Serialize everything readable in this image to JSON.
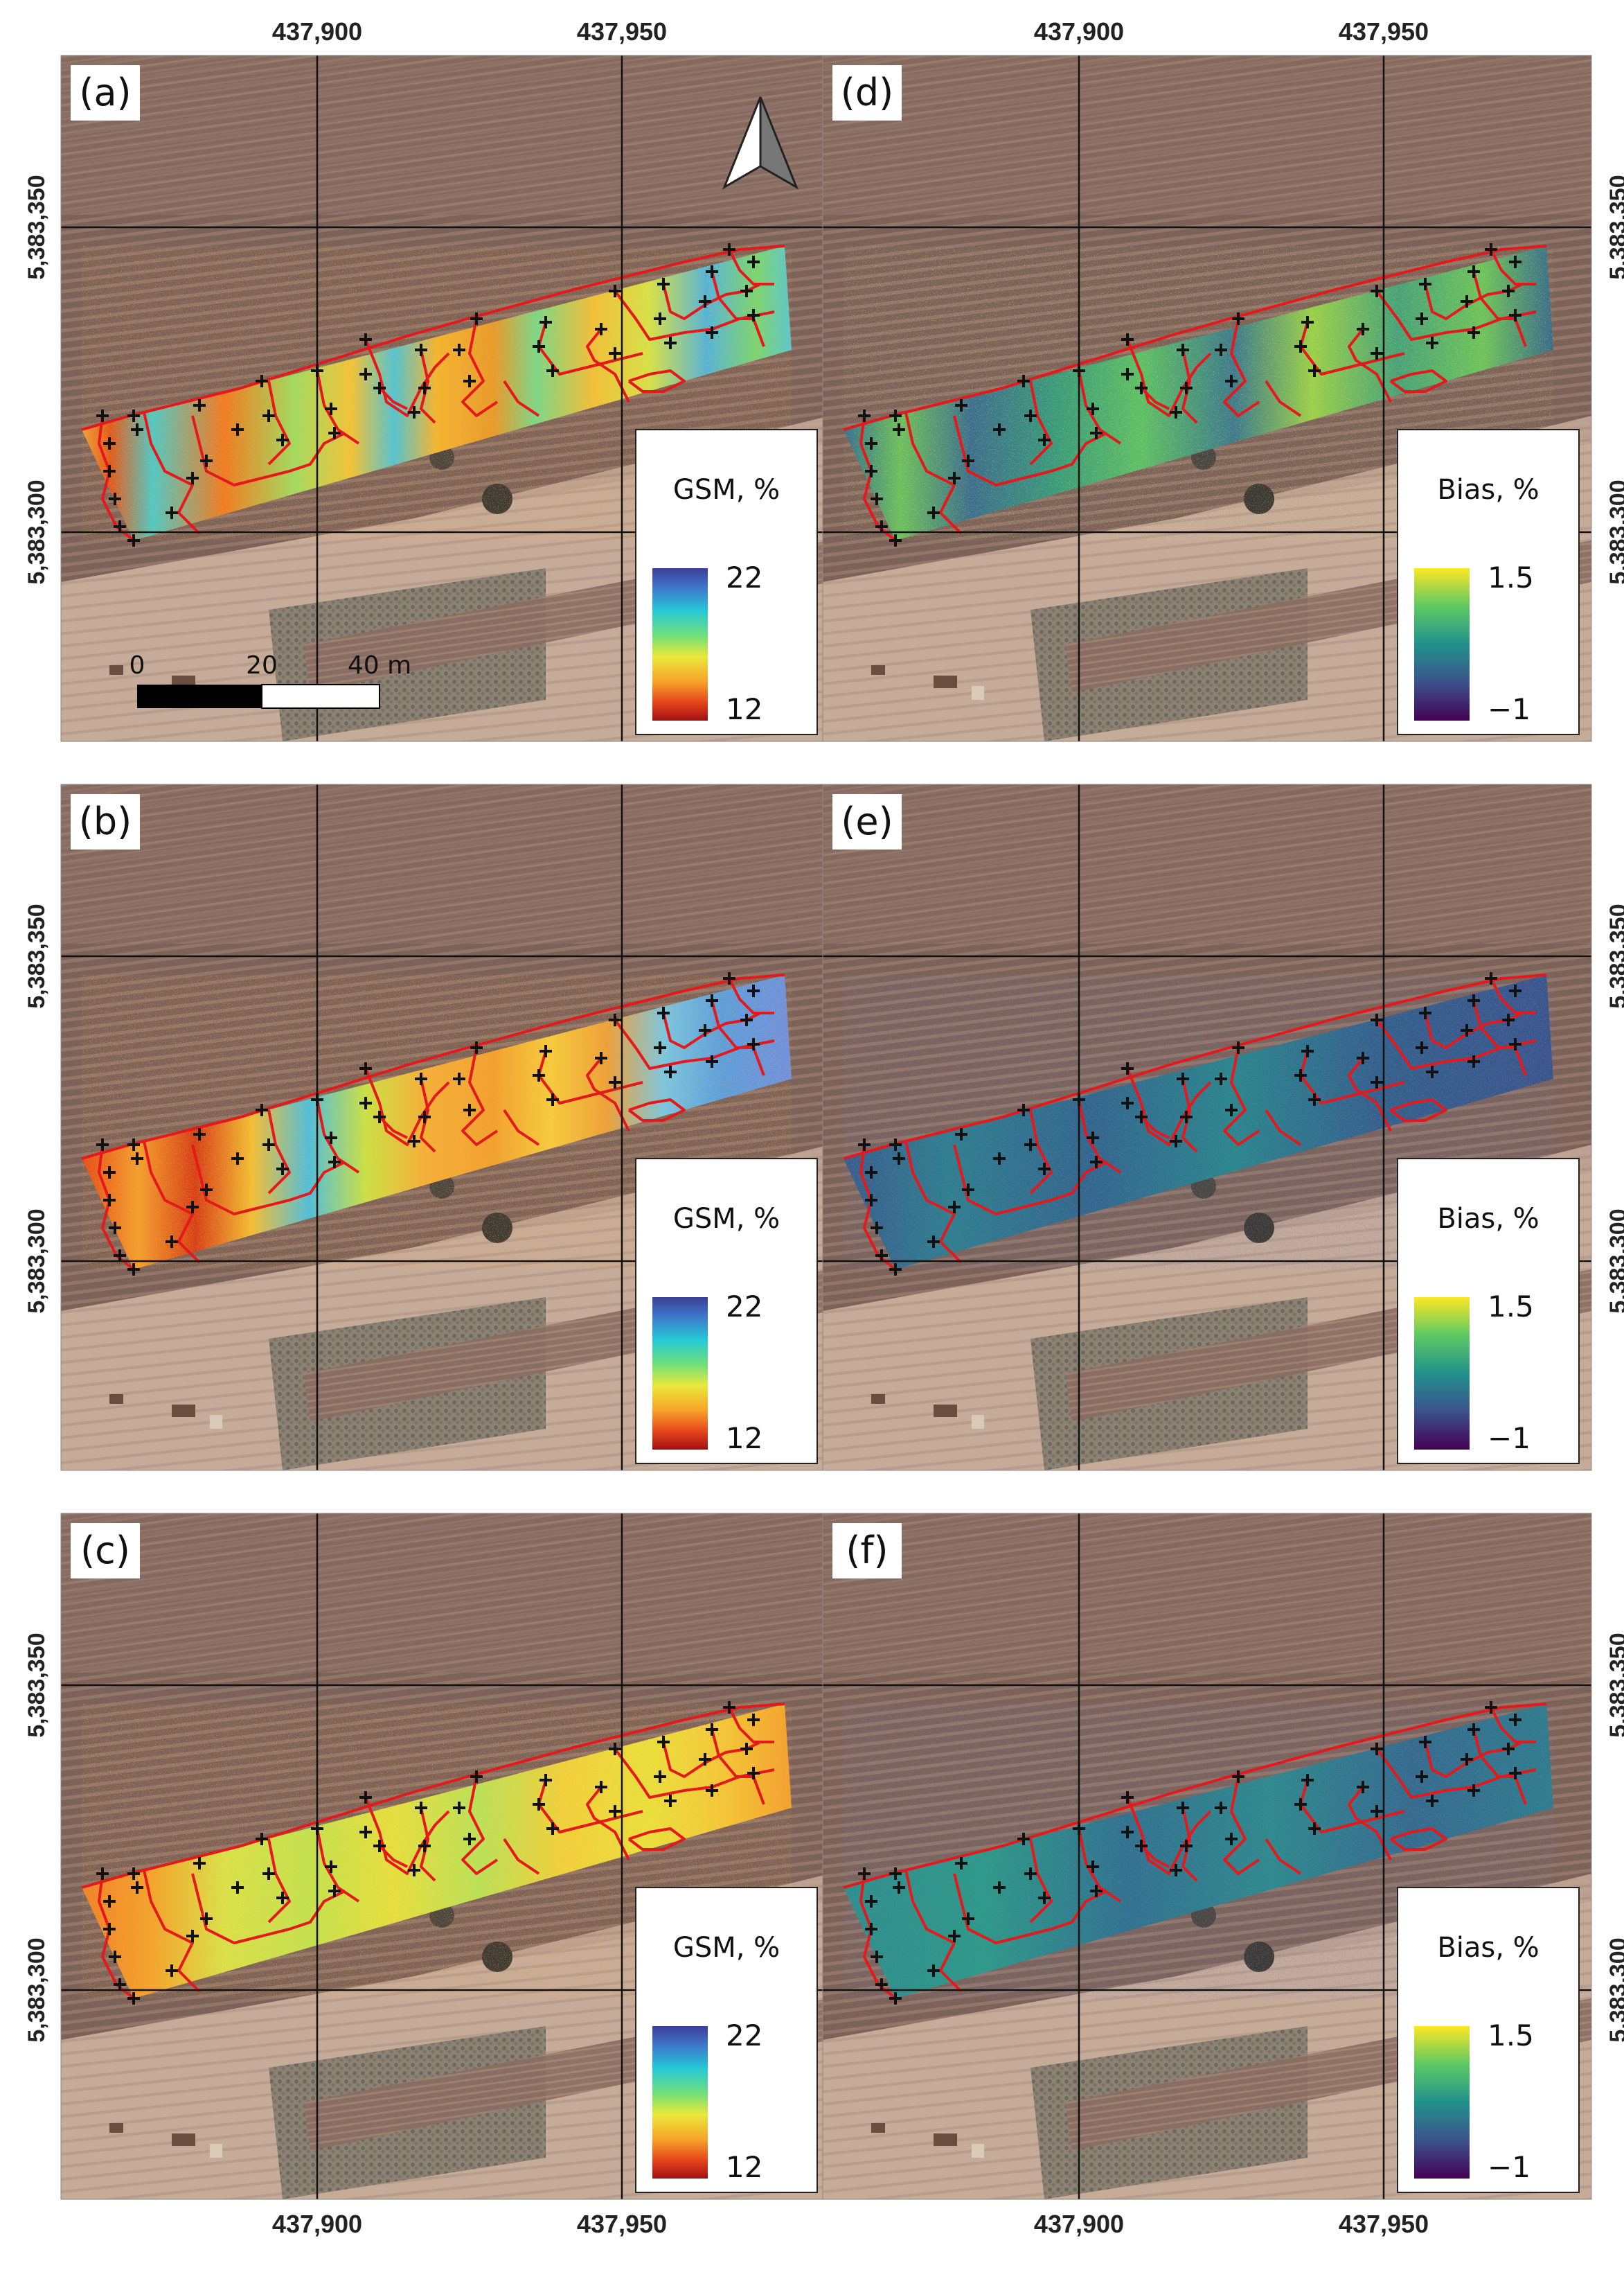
{
  "figure": {
    "panels": [
      {
        "id": "a",
        "label": "(a)",
        "legend_title": "GSM, %",
        "legend_max": "22",
        "legend_min": "12",
        "colormap": "spectral",
        "show_north_arrow": true,
        "show_scale_bar": true
      },
      {
        "id": "d",
        "label": "(d)",
        "legend_title": "Bias, %",
        "legend_max": "1.5",
        "legend_min": "−1",
        "colormap": "viridis",
        "show_north_arrow": false,
        "show_scale_bar": false
      },
      {
        "id": "b",
        "label": "(b)",
        "legend_title": "GSM, %",
        "legend_max": "22",
        "legend_min": "12",
        "colormap": "spectral",
        "show_north_arrow": false,
        "show_scale_bar": false
      },
      {
        "id": "e",
        "label": "(e)",
        "legend_title": "Bias, %",
        "legend_max": "1.5",
        "legend_min": "−1",
        "colormap": "viridis",
        "show_north_arrow": false,
        "show_scale_bar": false
      },
      {
        "id": "c",
        "label": "(c)",
        "legend_title": "GSM, %",
        "legend_max": "22",
        "legend_min": "12",
        "colormap": "spectral",
        "show_north_arrow": false,
        "show_scale_bar": false
      },
      {
        "id": "f",
        "label": "(f)",
        "legend_title": "Bias, %",
        "legend_max": "1.5",
        "legend_min": "−1",
        "colormap": "viridis",
        "show_north_arrow": false,
        "show_scale_bar": false
      }
    ],
    "easting_labels": [
      "437,900",
      "437,950"
    ],
    "northing_labels": [
      "5,383,350",
      "5,383,300"
    ],
    "scale_bar": {
      "labels": [
        "0",
        "20",
        "40 m"
      ]
    },
    "colors": {
      "boundary": "#e4191c",
      "sample_marker": "#111111",
      "grid": "#111111",
      "field_dark": "#85695f",
      "field_light": "#cbb5a4"
    }
  }
}
